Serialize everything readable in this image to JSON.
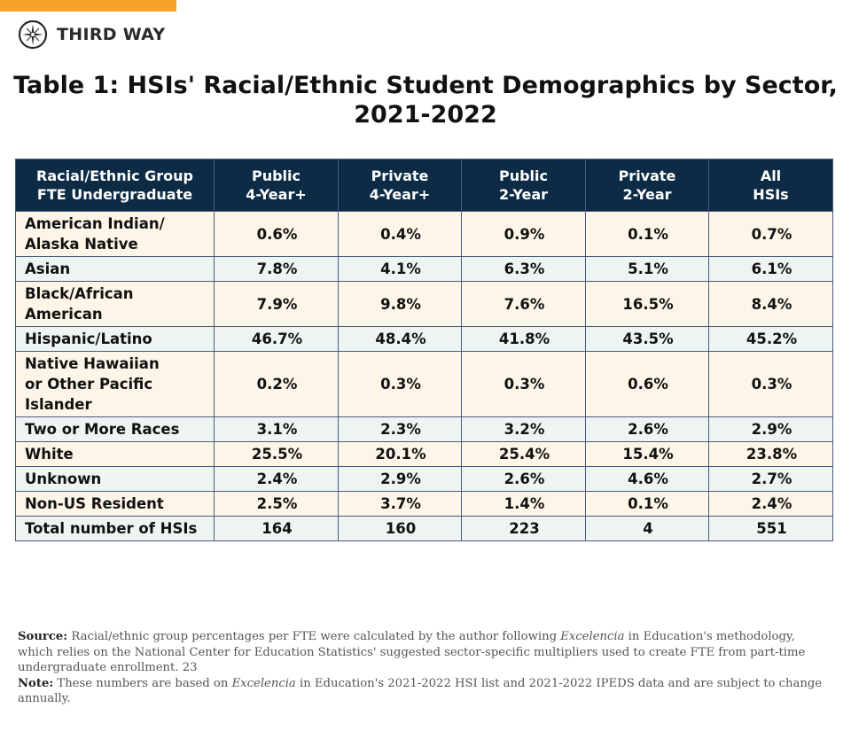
{
  "brand": {
    "name": "THIRD WAY",
    "accent": "#f7a12c",
    "logo_icon": "compass-star-icon"
  },
  "title": {
    "line1": "Table 1: HSIs' Racial/Ethnic Student Demographics by Sector,",
    "line2": "2021-2022"
  },
  "colors": {
    "header_bg": "#0d2b45",
    "row_cream": "#fdf5e8",
    "row_green": "#eef4f1",
    "border": "#4c5b7c"
  },
  "table": {
    "headers": [
      [
        "Racial/Ethnic Group",
        "FTE Undergraduate"
      ],
      [
        "Public",
        "4-Year+"
      ],
      [
        "Private",
        "4-Year+"
      ],
      [
        "Public",
        "2-Year"
      ],
      [
        "Private",
        "2-Year"
      ],
      [
        "All",
        "HSIs"
      ]
    ],
    "rows": [
      {
        "label": [
          "American Indian/",
          "Alaska Native"
        ],
        "values": [
          "0.6%",
          "0.4%",
          "0.9%",
          "0.1%",
          "0.7%"
        ]
      },
      {
        "label": [
          "Asian"
        ],
        "values": [
          "7.8%",
          "4.1%",
          "6.3%",
          "5.1%",
          "6.1%"
        ]
      },
      {
        "label": [
          "Black/African",
          "American"
        ],
        "values": [
          "7.9%",
          "9.8%",
          "7.6%",
          "16.5%",
          "8.4%"
        ]
      },
      {
        "label": [
          "Hispanic/Latino"
        ],
        "values": [
          "46.7%",
          "48.4%",
          "41.8%",
          "43.5%",
          "45.2%"
        ]
      },
      {
        "label": [
          "Native Hawaiian",
          "or Other Pacific",
          "Islander"
        ],
        "values": [
          "0.2%",
          "0.3%",
          "0.3%",
          "0.6%",
          "0.3%"
        ]
      },
      {
        "label": [
          "Two or More Races"
        ],
        "values": [
          "3.1%",
          "2.3%",
          "3.2%",
          "2.6%",
          "2.9%"
        ]
      },
      {
        "label": [
          "White"
        ],
        "values": [
          "25.5%",
          "20.1%",
          "25.4%",
          "15.4%",
          "23.8%"
        ]
      },
      {
        "label": [
          "Unknown"
        ],
        "values": [
          "2.4%",
          "2.9%",
          "2.6%",
          "4.6%",
          "2.7%"
        ]
      },
      {
        "label": [
          "Non-US Resident"
        ],
        "values": [
          "2.5%",
          "3.7%",
          "1.4%",
          "0.1%",
          "2.4%"
        ]
      },
      {
        "label": [
          "Total number of HSIs"
        ],
        "values": [
          "164",
          "160",
          "223",
          "4",
          "551"
        ]
      }
    ]
  },
  "notes": {
    "source_label": "Source:",
    "source_pre": " Racial/ethnic group percentages per FTE were calculated by the author following ",
    "source_em": "Excelencia",
    "source_post": " in Education's methodology, which relies on the National Center for Education Statistics' suggested sector-specific multipliers used to create FTE from part-time undergraduate enrollment. 23",
    "note_label": "Note:",
    "note_pre": " These numbers are based on ",
    "note_em": "Excelencia",
    "note_post": " in Education's 2021-2022 HSI list and 2021-2022 IPEDS data and are subject to change annually."
  }
}
